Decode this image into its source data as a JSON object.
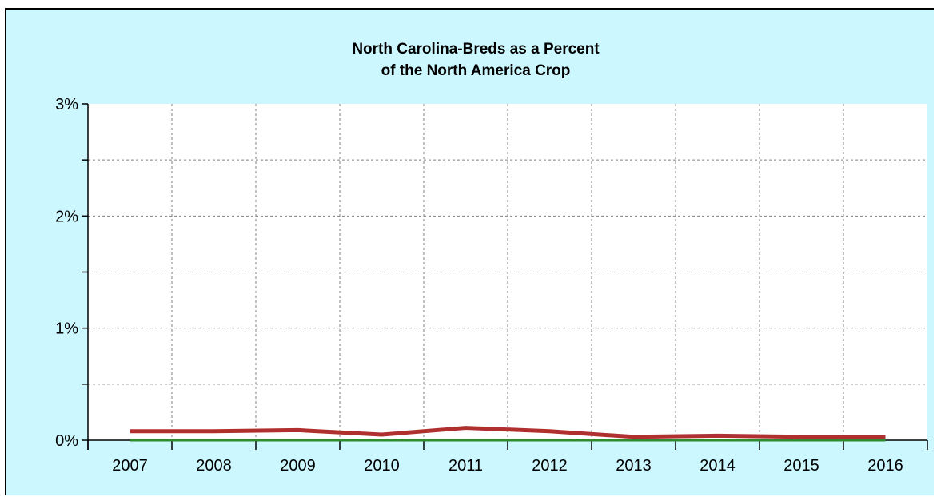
{
  "chart_data": {
    "type": "line",
    "title_lines": [
      "North Carolina-Breds as a Percent",
      "of the North America Crop"
    ],
    "xlabel": "",
    "ylabel": "",
    "categories": [
      "2007",
      "2008",
      "2009",
      "2010",
      "2011",
      "2012",
      "2013",
      "2014",
      "2015",
      "2016"
    ],
    "series": [
      {
        "color": "#b03030",
        "values": [
          0.08,
          0.08,
          0.09,
          0.05,
          0.11,
          0.08,
          0.03,
          0.04,
          0.03,
          0.03
        ]
      },
      {
        "color": "#2e8b2e",
        "values": [
          0,
          0,
          0,
          0,
          0,
          0,
          0,
          0,
          0,
          0
        ]
      }
    ],
    "ylim": [
      0,
      3
    ],
    "yticks": [
      0,
      1,
      2,
      3
    ],
    "ytick_labels": [
      "0%",
      "1%",
      "2%",
      "3%"
    ],
    "grid": true,
    "colors": {
      "background": "#ccf7ff",
      "plot_area": "#ffffff",
      "grid": "#808080"
    }
  }
}
